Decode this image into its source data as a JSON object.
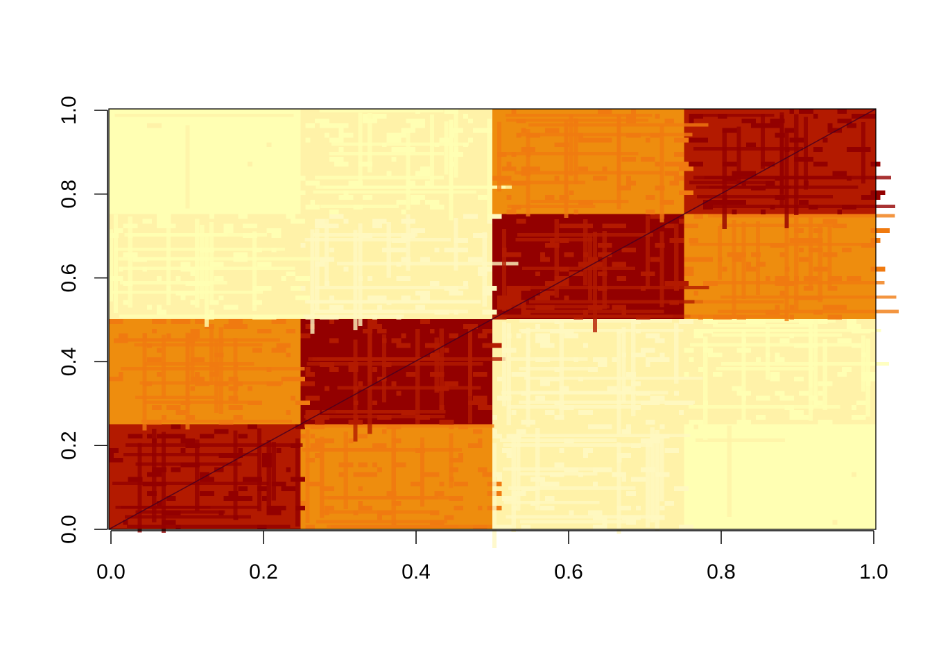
{
  "chart_data": {
    "type": "heatmap",
    "title": "",
    "xlabel": "",
    "ylabel": "",
    "xlim": [
      0,
      1
    ],
    "ylim": [
      0,
      1
    ],
    "x_ticks": [
      0,
      0.2,
      0.4,
      0.6,
      0.8,
      1
    ],
    "x_tick_labels": [
      "0.0",
      "0.2",
      "0.4",
      "0.6",
      "0.8",
      "1.0"
    ],
    "y_ticks": [
      0,
      0.2,
      0.4,
      0.6,
      0.8,
      1
    ],
    "y_tick_labels": [
      "0.0",
      "0.2",
      "0.4",
      "0.6",
      "0.8",
      "1.0"
    ],
    "grid": false,
    "legend": "none",
    "color_scale": [
      "#FFFFB3",
      "#FFF2A8",
      "#EE8D0E",
      "#B31A00",
      "#930000"
    ],
    "color_scale_meaning": "light yellow = low value, dark red = high value",
    "blocks": [
      {
        "x": [
          0.0,
          0.25
        ],
        "y": [
          0.0,
          0.25
        ],
        "color": "#B31A00",
        "level": "high"
      },
      {
        "x": [
          0.25,
          0.5
        ],
        "y": [
          0.0,
          0.25
        ],
        "color": "#EE8D0E",
        "level": "medium"
      },
      {
        "x": [
          0.5,
          0.75
        ],
        "y": [
          0.0,
          0.25
        ],
        "color": "#FFF2A8",
        "level": "low"
      },
      {
        "x": [
          0.75,
          1.0
        ],
        "y": [
          0.0,
          0.25
        ],
        "color": "#FFFFB3",
        "level": "lowest"
      },
      {
        "x": [
          0.0,
          0.25
        ],
        "y": [
          0.25,
          0.5
        ],
        "color": "#EE8D0E",
        "level": "medium"
      },
      {
        "x": [
          0.25,
          0.5
        ],
        "y": [
          0.25,
          0.5
        ],
        "color": "#930000",
        "level": "highest"
      },
      {
        "x": [
          0.5,
          0.75
        ],
        "y": [
          0.25,
          0.5
        ],
        "color": "#FFF2A8",
        "level": "low"
      },
      {
        "x": [
          0.75,
          1.0
        ],
        "y": [
          0.25,
          0.5
        ],
        "color": "#FFF2A8",
        "level": "low"
      },
      {
        "x": [
          0.0,
          0.25
        ],
        "y": [
          0.5,
          0.75
        ],
        "color": "#FFF2A8",
        "level": "low"
      },
      {
        "x": [
          0.25,
          0.5
        ],
        "y": [
          0.5,
          0.75
        ],
        "color": "#FFF2A8",
        "level": "low"
      },
      {
        "x": [
          0.5,
          0.75
        ],
        "y": [
          0.5,
          0.75
        ],
        "color": "#930000",
        "level": "highest"
      },
      {
        "x": [
          0.75,
          1.0
        ],
        "y": [
          0.5,
          0.75
        ],
        "color": "#EE8D0E",
        "level": "medium"
      },
      {
        "x": [
          0.0,
          0.25
        ],
        "y": [
          0.75,
          1.0
        ],
        "color": "#FFFFB3",
        "level": "lowest"
      },
      {
        "x": [
          0.25,
          0.5
        ],
        "y": [
          0.75,
          1.0
        ],
        "color": "#FFF2A8",
        "level": "low"
      },
      {
        "x": [
          0.5,
          0.75
        ],
        "y": [
          0.75,
          1.0
        ],
        "color": "#EE8D0E",
        "level": "medium"
      },
      {
        "x": [
          0.75,
          1.0
        ],
        "y": [
          0.75,
          1.0
        ],
        "color": "#B31A00",
        "level": "high"
      }
    ],
    "diagonal": {
      "from": [
        0,
        0
      ],
      "to": [
        1,
        1
      ],
      "color": "#4A0020"
    }
  }
}
